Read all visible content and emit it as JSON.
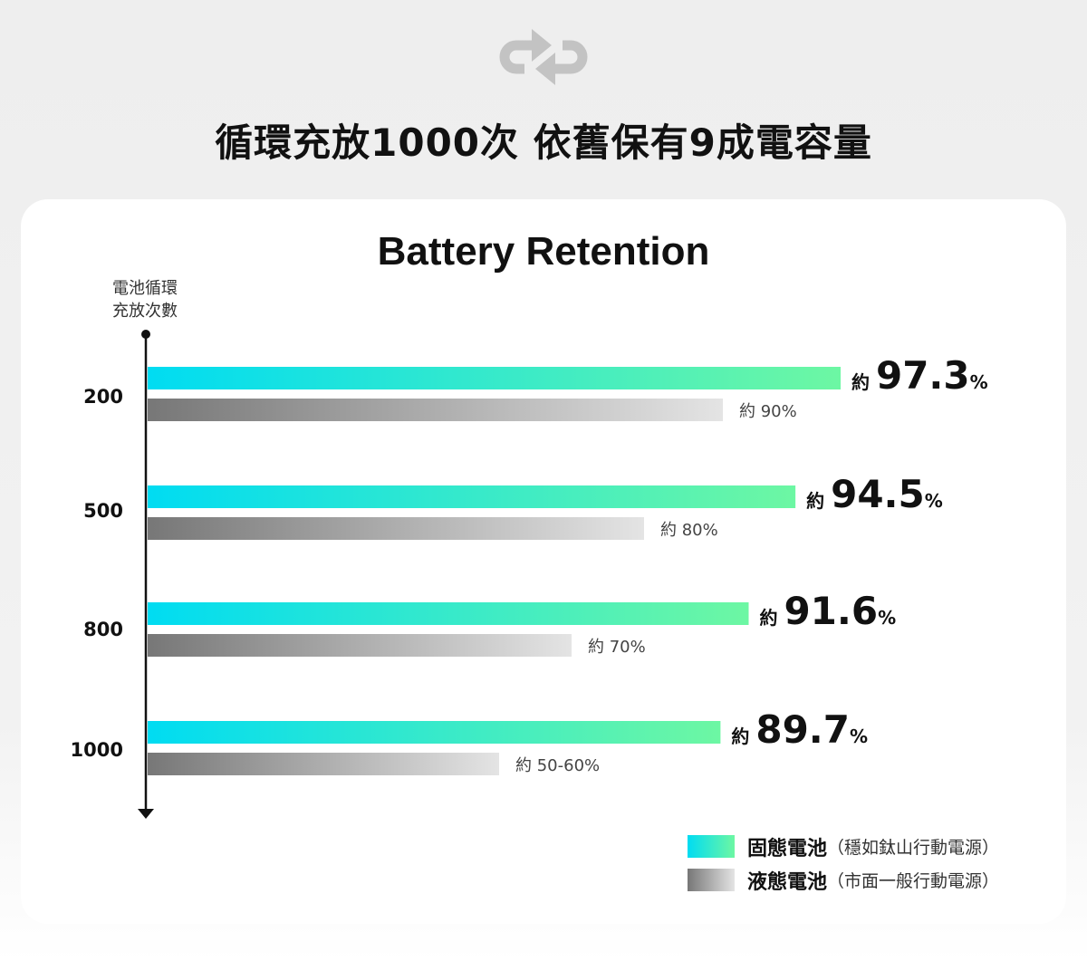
{
  "title": "循環充放1000次 依舊保有9成電容量",
  "icon": "cycle-arrows-icon",
  "colors": {
    "solid_start": "#00dcf2",
    "solid_end": "#6df7a3",
    "liquid_start": "#777777",
    "liquid_end": "#e4e4e4",
    "axis": "#111111"
  },
  "chart_data": {
    "type": "bar",
    "orientation": "horizontal",
    "title": "Battery Retention",
    "ylabel_line1": "電池循環",
    "ylabel_line2": "充放次數",
    "categories": [
      "200",
      "500",
      "800",
      "1000"
    ],
    "approx_prefix": "約",
    "series": [
      {
        "name": "固態電池",
        "note": "（穩如鈦山行動電源）",
        "values": [
          97.3,
          94.5,
          91.6,
          89.7
        ],
        "labels": [
          "97.3",
          "94.5",
          "91.6",
          "89.7"
        ],
        "unit": "%"
      },
      {
        "name": "液態電池",
        "note": "（市面一般行動電源）",
        "values": [
          90,
          80,
          70,
          55
        ],
        "labels": [
          "約 90%",
          "約 80%",
          "約 70%",
          "約 50-60%"
        ]
      }
    ],
    "grid": false,
    "legend_position": "bottom-right"
  }
}
